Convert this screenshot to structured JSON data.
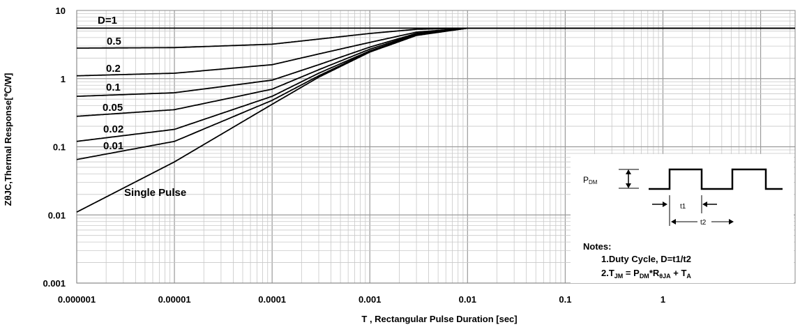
{
  "chart_data": {
    "type": "line",
    "xscale": "log",
    "yscale": "log",
    "xlim": [
      1e-06,
      10
    ],
    "ylim": [
      0.001,
      10
    ],
    "grid": true,
    "xlabel": "T , Rectangular Pulse Duration [sec]",
    "ylabel": "ZθJC,Thermal Response[℃/W]",
    "xticks": [
      "0.000001",
      "0.00001",
      "0.0001",
      "0.001",
      "0.01",
      "0.1",
      "1"
    ],
    "yticks": [
      "10",
      "1",
      "0.1",
      "0.01",
      "0.001"
    ],
    "series": [
      {
        "name": "D=1",
        "x": [
          1e-06,
          0.01,
          10
        ],
        "y": [
          5.5,
          5.5,
          5.5
        ]
      },
      {
        "name": "0.5",
        "x": [
          1e-06,
          1e-05,
          0.0001,
          0.0003,
          0.001,
          0.003,
          0.01,
          10
        ],
        "y": [
          2.8,
          2.85,
          3.2,
          3.8,
          4.6,
          5.3,
          5.5,
          5.5
        ]
      },
      {
        "name": "0.2",
        "x": [
          1e-06,
          1e-05,
          0.0001,
          0.0003,
          0.001,
          0.003,
          0.01,
          10
        ],
        "y": [
          1.1,
          1.2,
          1.6,
          2.3,
          3.4,
          4.8,
          5.5,
          5.5
        ]
      },
      {
        "name": "0.1",
        "x": [
          1e-06,
          1e-05,
          0.0001,
          0.0003,
          0.001,
          0.003,
          0.01,
          10
        ],
        "y": [
          0.55,
          0.62,
          0.95,
          1.6,
          2.9,
          4.6,
          5.5,
          5.5
        ]
      },
      {
        "name": "0.05",
        "x": [
          1e-06,
          1e-05,
          0.0001,
          0.0003,
          0.001,
          0.003,
          0.01,
          10
        ],
        "y": [
          0.28,
          0.35,
          0.7,
          1.35,
          2.7,
          4.5,
          5.5,
          5.5
        ]
      },
      {
        "name": "0.02",
        "x": [
          1e-06,
          1e-05,
          0.0001,
          0.0003,
          0.001,
          0.003,
          0.01,
          10
        ],
        "y": [
          0.12,
          0.18,
          0.55,
          1.2,
          2.55,
          4.4,
          5.5,
          5.5
        ]
      },
      {
        "name": "0.01",
        "x": [
          1e-06,
          1e-05,
          0.0001,
          0.0003,
          0.001,
          0.003,
          0.01,
          10
        ],
        "y": [
          0.065,
          0.12,
          0.48,
          1.1,
          2.5,
          4.35,
          5.5,
          5.5
        ]
      },
      {
        "name": "Single Pulse",
        "x": [
          1e-06,
          1e-05,
          0.0001,
          0.0003,
          0.001,
          0.003,
          0.01,
          10
        ],
        "y": [
          0.011,
          0.06,
          0.42,
          1.05,
          2.45,
          4.3,
          5.5,
          5.5
        ]
      }
    ]
  },
  "inset": {
    "pdm": "P",
    "pdm_sub": "DM",
    "t1": "t1",
    "t2": "t2",
    "notes_title": "Notes:",
    "note1": "1.Duty  Cycle, D=t1/t2",
    "note2": {
      "a": "2.T",
      "a_sub": "JM",
      "b": " = P",
      "b_sub": "DM",
      "c": "*R",
      "c_sub": "θJA",
      "d": " + T",
      "d_sub": "A"
    }
  }
}
